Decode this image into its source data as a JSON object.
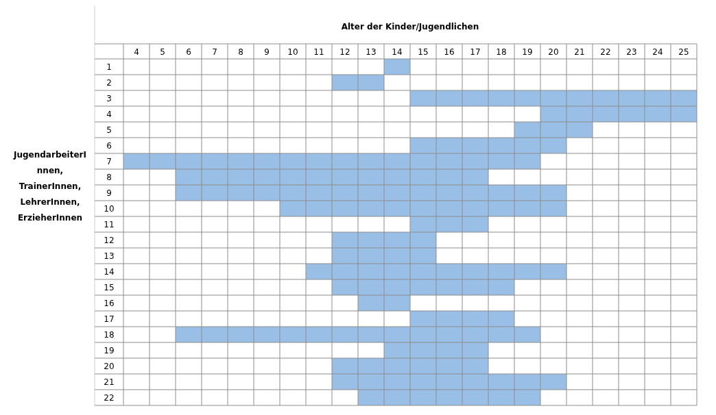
{
  "chart_data": {
    "type": "bar",
    "orientation": "horizontal",
    "xlabel": "Alter der Kinder/Jugendlichen",
    "ylabel": "JugendarbeiterInnen, TrainerInnen, LehrerInnen, ErzieherInnen",
    "categories": [
      "1",
      "2",
      "3",
      "4",
      "5",
      "6",
      "7",
      "8",
      "9",
      "10",
      "11",
      "12",
      "13",
      "14",
      "15",
      "16",
      "17",
      "18",
      "19",
      "20",
      "21",
      "22"
    ],
    "base": [
      13.5,
      11.5,
      14.5,
      19.5,
      18.5,
      14.5,
      3.5,
      5.5,
      5.5,
      9.5,
      14.5,
      11.5,
      11.5,
      10.5,
      11.5,
      12.5,
      14.5,
      5.5,
      13.5,
      11.5,
      11.5,
      12.5
    ],
    "values": [
      1,
      2,
      11,
      6,
      3,
      6,
      16,
      12,
      15,
      11,
      3,
      4,
      4,
      10,
      7,
      2,
      4,
      14,
      4,
      6,
      9,
      7
    ],
    "color": "#99bfe6",
    "xlim": [
      3.5,
      25.5
    ],
    "xticks": [
      4,
      5,
      6,
      7,
      8,
      9,
      10,
      11,
      12,
      13,
      14,
      15,
      16,
      17,
      18,
      19,
      20,
      21,
      22,
      23,
      24,
      25
    ],
    "grid": true
  }
}
